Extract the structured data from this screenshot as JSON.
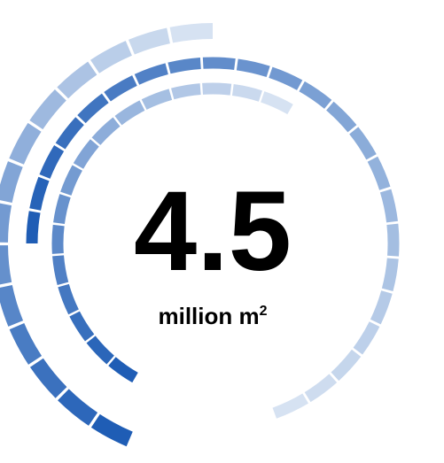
{
  "stat": {
    "value": "4.5",
    "unit": "million m",
    "unit_superscript": "2"
  },
  "colors": {
    "text": "#000000",
    "light": "#d6e2f2",
    "dark": "#1f5db5"
  },
  "rings": [
    {
      "name": "outer-ring",
      "fade": "dark-to-light-clockwise"
    },
    {
      "name": "middle-ring",
      "fade": "dark-to-light-clockwise"
    },
    {
      "name": "inner-ring",
      "fade": "dark-to-light-clockwise"
    }
  ]
}
